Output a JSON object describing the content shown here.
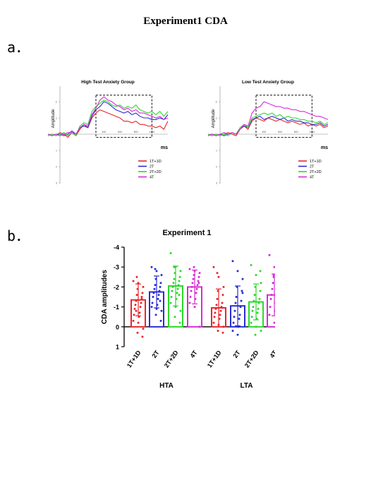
{
  "title": "Experiment1 CDA",
  "panel_labels": {
    "a": "a．",
    "b": "b．"
  },
  "colors": {
    "1T+1D": "#e8262a",
    "2T": "#2b2bd6",
    "2T+2D": "#2bd92b",
    "4T": "#d62bd6"
  },
  "chart_data": [
    {
      "type": "line",
      "title": "High Test Anxiety Group",
      "ylabel_unit": "μV",
      "ylabel": "Amplitude",
      "xlabel": "ms",
      "y_inverted": true,
      "ylim": [
        3,
        -3
      ],
      "xlim": [
        -300,
        1200
      ],
      "yticks": [
        -2,
        -1,
        1,
        2,
        3
      ],
      "xticks": [
        400,
        600,
        800,
        1000
      ],
      "xtick_labels": [
        "400",
        "600",
        "800",
        "1000"
      ],
      "highlight_window": {
        "x0": 300,
        "x1": 1000,
        "y_top": -2.4,
        "y_bottom": 0.2
      },
      "x": [
        -300,
        -250,
        -200,
        -150,
        -100,
        -50,
        0,
        50,
        100,
        150,
        200,
        250,
        300,
        350,
        400,
        450,
        500,
        550,
        600,
        650,
        700,
        750,
        800,
        850,
        900,
        950,
        1000,
        1050,
        1100,
        1150,
        1200
      ],
      "series": [
        {
          "name": "1T+1D",
          "values": [
            0.1,
            0,
            0.1,
            -0.1,
            0,
            0.2,
            -0.1,
            0.1,
            -0.3,
            -0.6,
            -0.4,
            -1.0,
            -1.3,
            -1.5,
            -1.4,
            -1.3,
            -1.2,
            -1.1,
            -1.0,
            -0.8,
            -0.8,
            -0.7,
            -0.8,
            -0.6,
            -0.6,
            -0.5,
            -0.5,
            -0.4,
            -0.5,
            -0.3,
            -0.8
          ]
        },
        {
          "name": "2T",
          "values": [
            0,
            0.1,
            0,
            0,
            0.1,
            0,
            -0.2,
            0,
            -0.4,
            -0.5,
            -0.4,
            -1.1,
            -1.5,
            -1.7,
            -2.0,
            -1.9,
            -1.7,
            -1.5,
            -1.4,
            -1.3,
            -1.4,
            -1.2,
            -1.3,
            -1.1,
            -1.0,
            -1.0,
            -0.9,
            -0.9,
            -1.0,
            -0.9,
            -1.2
          ]
        },
        {
          "name": "2T+2D",
          "values": [
            0.1,
            0,
            0.1,
            0,
            -0.1,
            0.1,
            -0.1,
            0.1,
            -0.5,
            -0.7,
            -0.6,
            -1.4,
            -1.7,
            -1.9,
            -2.1,
            -2.0,
            -1.8,
            -1.7,
            -1.8,
            -1.6,
            -1.7,
            -1.6,
            -1.8,
            -1.5,
            -1.4,
            -1.3,
            -1.4,
            -1.2,
            -1.4,
            -1.1,
            -1.4
          ]
        },
        {
          "name": "4T",
          "values": [
            0,
            0.1,
            0,
            0.1,
            0,
            -0.1,
            -0.1,
            0,
            -0.4,
            -0.6,
            -0.5,
            -1.2,
            -1.6,
            -2.1,
            -2.3,
            -2.1,
            -2.0,
            -1.8,
            -1.7,
            -1.5,
            -1.6,
            -1.4,
            -1.5,
            -1.3,
            -1.3,
            -1.2,
            -1.1,
            -1.0,
            -1.1,
            -0.9,
            -1.0
          ]
        }
      ],
      "legend": [
        "1T+1D",
        "2T",
        "2T+2D",
        "4T"
      ]
    },
    {
      "type": "line",
      "title": "Low Test Anxiety Group",
      "ylabel_unit": "μV",
      "ylabel": "Amplitude",
      "xlabel": "ms",
      "y_inverted": true,
      "ylim": [
        3,
        -3
      ],
      "xlim": [
        -300,
        1200
      ],
      "yticks": [
        -2,
        -1,
        1,
        2,
        3
      ],
      "xticks": [
        400,
        600,
        800,
        1000
      ],
      "xtick_labels": [
        "400",
        "600",
        "800",
        "1000"
      ],
      "highlight_window": {
        "x0": 300,
        "x1": 1000,
        "y_top": -2.4,
        "y_bottom": 0.2
      },
      "x": [
        -300,
        -250,
        -200,
        -150,
        -100,
        -50,
        0,
        50,
        100,
        150,
        200,
        250,
        300,
        350,
        400,
        450,
        500,
        550,
        600,
        650,
        700,
        750,
        800,
        850,
        900,
        950,
        1000,
        1050,
        1100,
        1150,
        1200
      ],
      "series": [
        {
          "name": "1T+1D",
          "values": [
            0,
            0.1,
            0,
            0.1,
            0,
            -0.1,
            0,
            0.1,
            -0.3,
            -0.5,
            -0.3,
            -0.8,
            -1.0,
            -0.9,
            -0.8,
            -1.0,
            -0.9,
            -0.8,
            -0.9,
            -0.8,
            -0.7,
            -0.8,
            -0.7,
            -0.6,
            -0.7,
            -0.5,
            -0.6,
            -0.5,
            -0.6,
            -0.4,
            -0.5
          ]
        },
        {
          "name": "2T",
          "values": [
            0.1,
            0,
            0.1,
            0,
            0.1,
            0,
            -0.1,
            0,
            -0.3,
            -0.5,
            -0.4,
            -0.9,
            -1.0,
            -1.1,
            -0.9,
            -1.0,
            -1.1,
            -1.0,
            -0.9,
            -1.0,
            -0.8,
            -0.9,
            -0.8,
            -0.8,
            -0.7,
            -0.7,
            -0.6,
            -0.6,
            -0.7,
            -0.5,
            -0.6
          ]
        },
        {
          "name": "2T+2D",
          "values": [
            0,
            0.1,
            0,
            0.1,
            0,
            0.1,
            -0.1,
            0,
            -0.4,
            -0.6,
            -0.4,
            -1.0,
            -1.1,
            -1.2,
            -1.3,
            -1.2,
            -1.3,
            -1.1,
            -1.2,
            -1.0,
            -1.1,
            -1.0,
            -1.0,
            -0.9,
            -0.9,
            -0.8,
            -0.8,
            -0.7,
            -0.8,
            -0.6,
            -0.7
          ]
        },
        {
          "name": "4T",
          "values": [
            0.1,
            0,
            0.1,
            0,
            -0.1,
            0,
            -0.1,
            0,
            -0.3,
            -0.6,
            -0.5,
            -1.3,
            -1.6,
            -1.7,
            -2.0,
            -1.9,
            -1.8,
            -1.7,
            -1.7,
            -1.6,
            -1.6,
            -1.5,
            -1.5,
            -1.4,
            -1.4,
            -1.3,
            -1.2,
            -1.1,
            -1.1,
            -1.0,
            -0.9
          ]
        }
      ],
      "legend": [
        "1T+1D",
        "2T",
        "2T+2D",
        "4T"
      ]
    },
    {
      "type": "bar",
      "title": "Experiment 1",
      "ylabel": "CDA amplitudes",
      "y_inverted": true,
      "ylim": [
        1,
        -4
      ],
      "yticks": [
        -4,
        -3,
        -2,
        -1,
        0,
        1
      ],
      "categories": [
        "1T+1D",
        "2T",
        "2T+2D",
        "4T",
        "1T+1D",
        "2T",
        "2T+2D",
        "4T"
      ],
      "groups": [
        {
          "name": "HTA",
          "categories": [
            "1T+1D",
            "2T",
            "2T+2D",
            "4T"
          ]
        },
        {
          "name": "LTA",
          "categories": [
            "1T+1D",
            "2T",
            "2T+2D",
            "4T"
          ]
        }
      ],
      "values": [
        -1.35,
        -1.75,
        -2.05,
        -2.0,
        -0.95,
        -1.05,
        -1.25,
        -1.6
      ],
      "error_sd": [
        0.8,
        0.8,
        1.0,
        0.85,
        0.95,
        1.0,
        0.9,
        1.05
      ],
      "points": [
        [
          -2.3,
          -2.2,
          -2.0,
          -1.9,
          -1.7,
          -1.6,
          -1.4,
          -1.3,
          -1.2,
          -1.1,
          -1.0,
          -0.9,
          -0.7,
          -0.6,
          -0.5,
          -0.3,
          -0.2,
          0.1,
          0.3,
          0.5,
          -2.5,
          -1.5,
          -0.8
        ],
        [
          -3.0,
          -2.8,
          -2.6,
          -2.4,
          -2.2,
          -2.1,
          -2.0,
          -1.9,
          -1.8,
          -1.7,
          -1.6,
          -1.5,
          -1.4,
          -1.2,
          -1.1,
          -1.0,
          -0.9,
          -0.8,
          -0.6,
          -0.3,
          -2.9,
          -1.3
        ],
        [
          -3.7,
          -3.0,
          -2.8,
          -2.7,
          -2.5,
          -2.4,
          -2.3,
          -2.2,
          -2.1,
          -2.0,
          -1.9,
          -1.8,
          -1.7,
          -1.5,
          -1.4,
          -1.2,
          -1.0,
          -0.8,
          -0.5,
          -0.2,
          -3.0,
          -1.6
        ],
        [
          -2.9,
          -2.8,
          -2.7,
          -2.6,
          -2.5,
          -2.4,
          -2.3,
          -2.2,
          -2.1,
          -2.0,
          -1.9,
          -1.8,
          -1.7,
          -1.5,
          -1.4,
          -1.2,
          -1.0,
          0.0,
          -3.0,
          -2.2
        ],
        [
          -3.0,
          -2.5,
          -2.0,
          -1.8,
          -1.6,
          -1.4,
          -1.2,
          -1.1,
          -1.0,
          -0.9,
          -0.8,
          -0.7,
          -0.6,
          -0.5,
          -0.4,
          -0.2,
          -0.1,
          0.0,
          0.2,
          0.3,
          -2.7
        ],
        [
          -3.3,
          -2.8,
          -2.4,
          -2.0,
          -1.8,
          -1.5,
          -1.3,
          -1.2,
          -1.0,
          -0.8,
          -0.6,
          -0.5,
          -0.4,
          -0.2,
          0.0,
          0.2,
          0.4,
          -1.7
        ],
        [
          -3.1,
          -2.6,
          -2.2,
          -2.0,
          -1.8,
          -1.6,
          -1.4,
          -1.3,
          -1.2,
          -1.0,
          -0.9,
          -0.8,
          -0.7,
          -0.5,
          -0.4,
          -0.2,
          0.0,
          0.2,
          0.4,
          -2.8
        ],
        [
          -3.6,
          -3.0,
          -2.8,
          -2.6,
          -2.4,
          -2.2,
          -2.0,
          -1.9,
          -1.8,
          -1.6,
          -1.5,
          -1.4,
          -1.2,
          -1.0,
          -0.8,
          -0.6,
          -0.2,
          0.0,
          -2.5
        ]
      ],
      "bar_colors": [
        "#e8262a",
        "#2b2bd6",
        "#2bd92b",
        "#d62bd6",
        "#e8262a",
        "#2b2bd6",
        "#2bd92b",
        "#d62bd6"
      ]
    }
  ]
}
